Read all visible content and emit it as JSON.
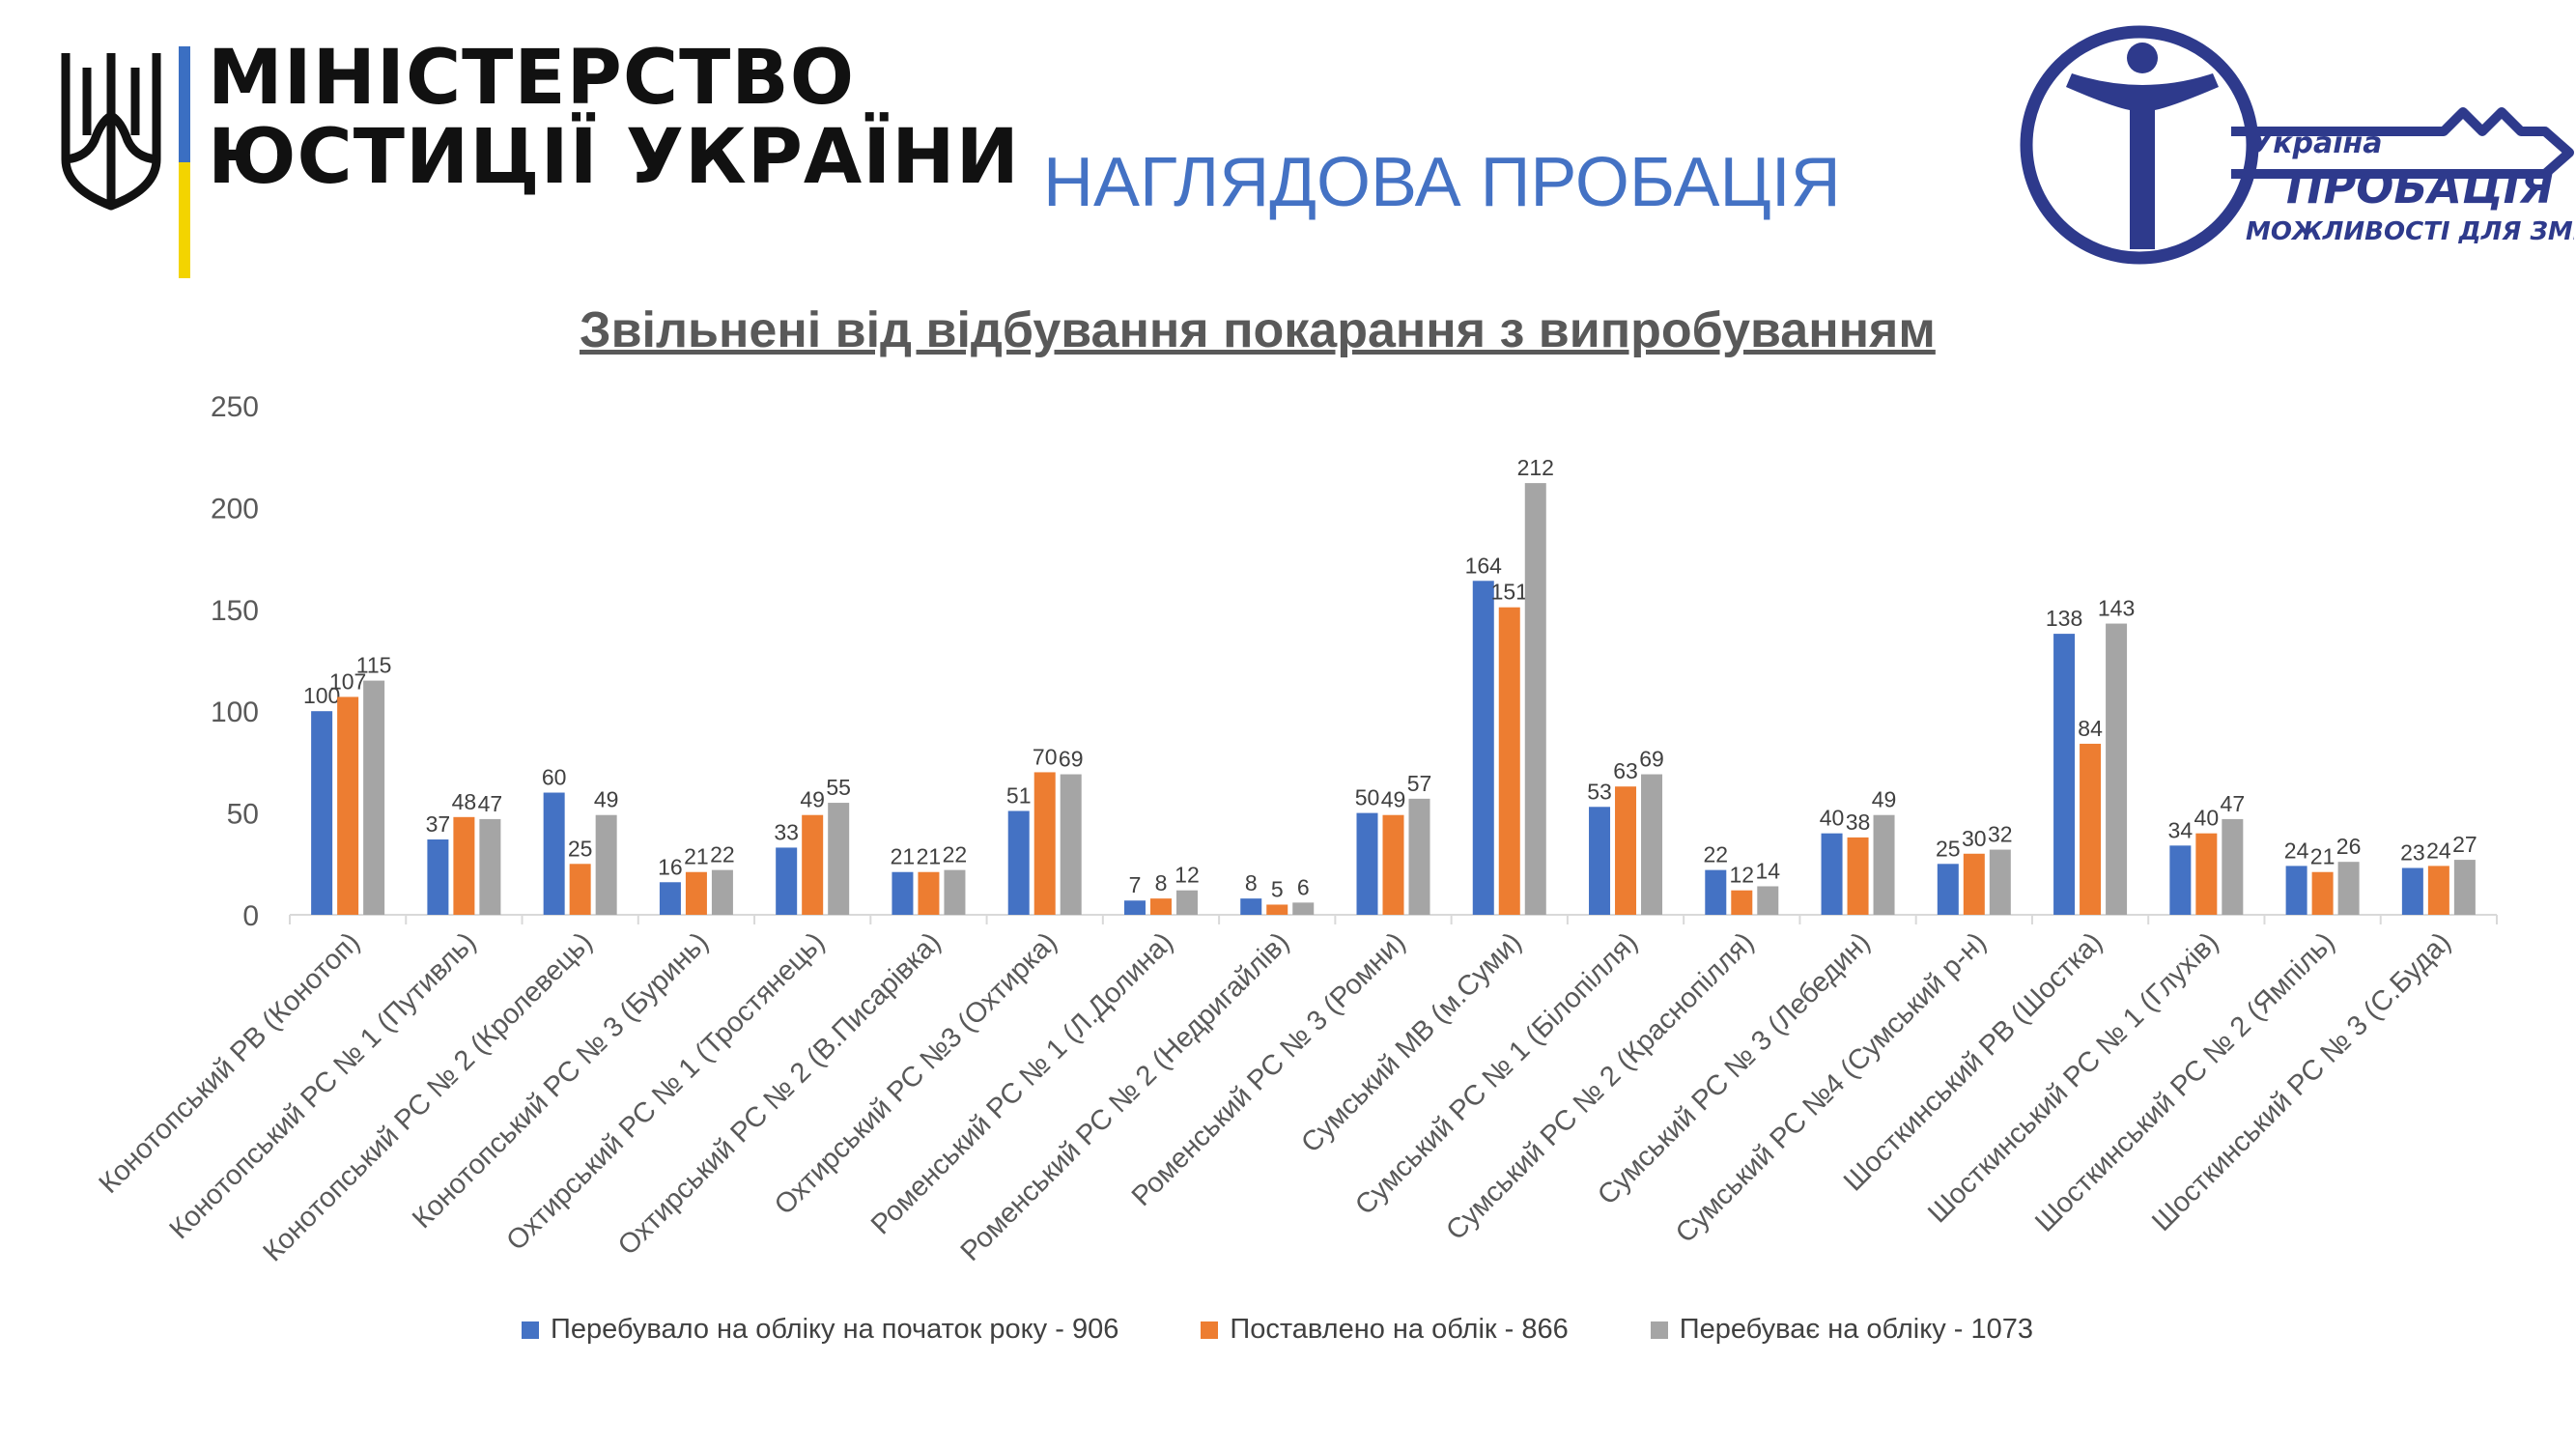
{
  "header": {
    "ministry_line1": "МІНІСТЕРСТВО",
    "ministry_line2": "ЮСТИЦІЇ УКРАЇНИ",
    "slide_title": "НАГЛЯДОВА ПРОБАЦІЯ",
    "logo_line1": "Україна",
    "logo_line2": "ПРОБАЦІЯ",
    "logo_line3": "МОЖЛИВОСТІ ДЛЯ ЗМІН"
  },
  "colors": {
    "series1": "#4472c4",
    "series2": "#ed7d31",
    "series3": "#a5a5a5",
    "logo_blue": "#2e3a8c",
    "title_blue": "#4472c4"
  },
  "chart_data": {
    "type": "bar",
    "title": "Звільнені від відбування покарання з випробуванням",
    "xlabel": "",
    "ylabel": "",
    "ylim": [
      0,
      250
    ],
    "yticks": [
      "0",
      "50",
      "100",
      "150",
      "200",
      "250"
    ],
    "grid": false,
    "legend_position": "bottom",
    "categories": [
      "Конотопський РВ (Конотоп)",
      "Конотопський РС № 1 (Путивль)",
      "Конотопський РС № 2 (Кролевець)",
      "Конотопський РС № 3 (Буринь)",
      "Охтирський РС № 1 (Тростянець)",
      "Охтирський РС № 2 (В.Писарівка)",
      "Охтирський РС №3 (Охтирка)",
      "Роменський РС № 1 (Л.Долина)",
      "Роменський РС № 2 (Недригайлів)",
      "Роменський РС № 3 (Ромни)",
      "Сумський МВ (м.Суми)",
      "Сумський РС № 1 (Білопілля)",
      "Сумський РС № 2 (Краснопілля)",
      "Сумський РС № 3 (Лебедин)",
      "Сумський РС №4 (Сумський р-н)",
      "Шосткинський РВ (Шостка)",
      "Шосткинський РС № 1 (Глухів)",
      "Шосткинський РС № 2 (Ямпіль)",
      "Шосткинський РС № 3 (С.Буда)"
    ],
    "series": [
      {
        "name": "Перебувало на обліку на початок року - 906",
        "values": [
          100,
          37,
          60,
          16,
          33,
          21,
          51,
          7,
          8,
          50,
          164,
          53,
          22,
          40,
          25,
          138,
          34,
          24,
          23
        ]
      },
      {
        "name": "Поставлено на облік - 866",
        "values": [
          107,
          48,
          25,
          21,
          49,
          21,
          70,
          8,
          5,
          49,
          151,
          63,
          12,
          38,
          30,
          84,
          40,
          21,
          24
        ]
      },
      {
        "name": "Перебуває на обліку - 1073",
        "values": [
          115,
          47,
          49,
          22,
          55,
          22,
          69,
          12,
          6,
          57,
          212,
          69,
          14,
          49,
          32,
          143,
          47,
          26,
          27
        ]
      }
    ]
  }
}
